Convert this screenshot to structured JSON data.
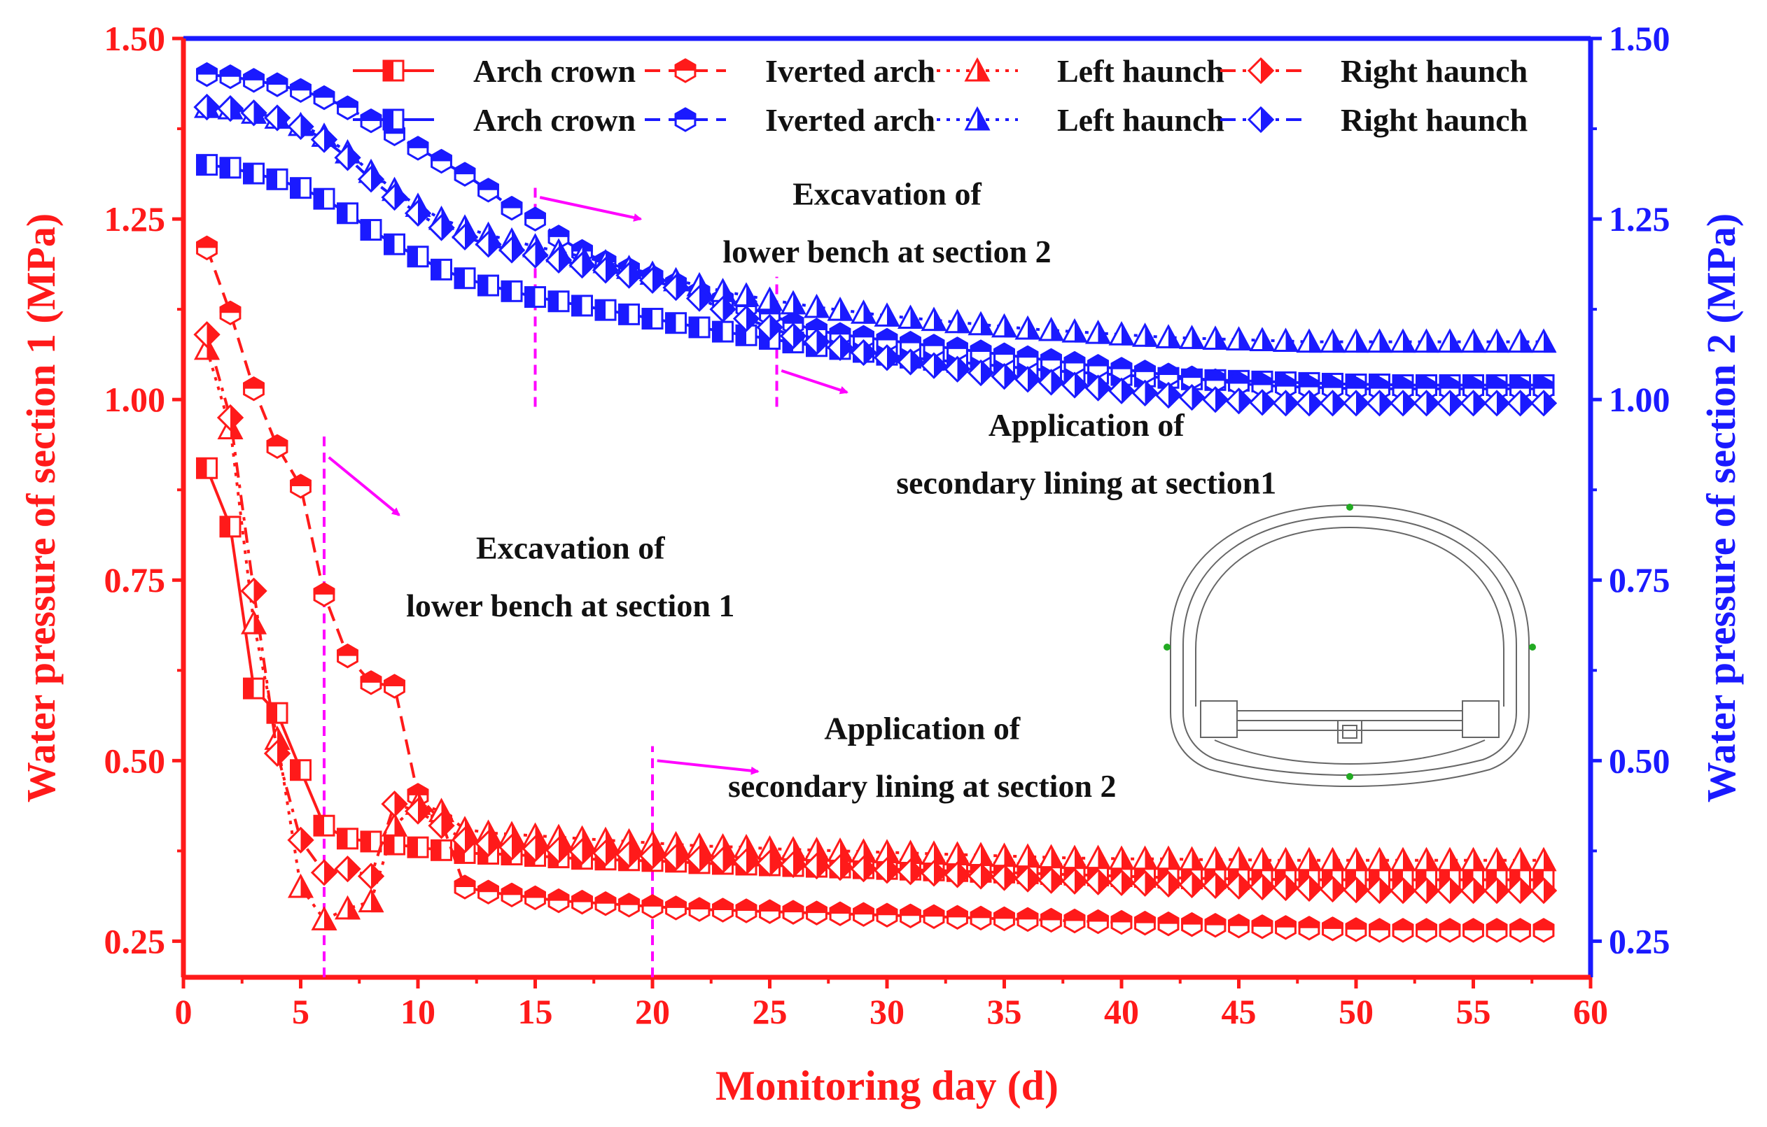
{
  "chart_data": {
    "type": "line",
    "xlabel": "Monitoring day (d)",
    "ylabel_left": "Water pressure of section 1 (MPa)",
    "ylabel_right": "Water pressure of section 2 (MPa)",
    "xlim": [
      0,
      60
    ],
    "ylim_left": [
      0.2,
      1.5
    ],
    "ylim_right": [
      0.2,
      1.5
    ],
    "xticks": [
      "0",
      "5",
      "10",
      "15",
      "20",
      "25",
      "30",
      "35",
      "40",
      "45",
      "50",
      "55",
      "60"
    ],
    "yticks_left": [
      "0.25",
      "0.50",
      "0.75",
      "1.00",
      "1.25",
      "1.50"
    ],
    "yticks_right": [
      "0.25",
      "0.50",
      "0.75",
      "1.00",
      "1.25",
      "1.50"
    ],
    "colors": {
      "section1": "#ff1a1a",
      "section2": "#1a1aff",
      "annotation": "#ff00ff",
      "text": "#111111"
    },
    "x": [
      1,
      2,
      3,
      4,
      5,
      6,
      7,
      8,
      9,
      10,
      11,
      12,
      13,
      14,
      15,
      16,
      17,
      18,
      19,
      20,
      21,
      22,
      23,
      24,
      25,
      26,
      27,
      28,
      29,
      30,
      31,
      32,
      33,
      34,
      35,
      36,
      37,
      38,
      39,
      40,
      41,
      42,
      43,
      44,
      45,
      46,
      47,
      48,
      49,
      50,
      51,
      52,
      53,
      54,
      55,
      56,
      57,
      58
    ],
    "series": [
      {
        "name": "Arch crown",
        "section": 1,
        "axis": "left",
        "marker": "square",
        "dash": "solid",
        "values": [
          0.905,
          0.824,
          0.6,
          0.566,
          0.487,
          0.41,
          0.392,
          0.388,
          0.384,
          0.38,
          0.376,
          0.372,
          0.371,
          0.37,
          0.368,
          0.366,
          0.364,
          0.363,
          0.362,
          0.361,
          0.36,
          0.358,
          0.357,
          0.356,
          0.355,
          0.354,
          0.353,
          0.352,
          0.351,
          0.35,
          0.349,
          0.348,
          0.347,
          0.346,
          0.345,
          0.344,
          0.343,
          0.342,
          0.341,
          0.34,
          0.339,
          0.338,
          0.337,
          0.337,
          0.336,
          0.336,
          0.335,
          0.335,
          0.335,
          0.335,
          0.335,
          0.335,
          0.335,
          0.335,
          0.335,
          0.335,
          0.335,
          0.335
        ]
      },
      {
        "name": "Iverted arch",
        "section": 1,
        "axis": "left",
        "marker": "hexagon",
        "dash": "dash",
        "values": [
          1.21,
          1.12,
          1.015,
          0.935,
          0.88,
          0.73,
          0.645,
          0.608,
          0.603,
          0.452,
          0.416,
          0.325,
          0.318,
          0.314,
          0.31,
          0.306,
          0.304,
          0.302,
          0.3,
          0.298,
          0.296,
          0.294,
          0.293,
          0.292,
          0.291,
          0.29,
          0.289,
          0.288,
          0.287,
          0.286,
          0.285,
          0.284,
          0.283,
          0.282,
          0.281,
          0.28,
          0.279,
          0.278,
          0.277,
          0.276,
          0.275,
          0.274,
          0.273,
          0.272,
          0.271,
          0.27,
          0.269,
          0.268,
          0.267,
          0.266,
          0.265,
          0.265,
          0.265,
          0.265,
          0.265,
          0.265,
          0.265,
          0.265
        ]
      },
      {
        "name": "Left haunch",
        "section": 1,
        "axis": "left",
        "marker": "triangle",
        "dash": "dot",
        "values": [
          1.07,
          0.96,
          0.69,
          0.53,
          0.325,
          0.28,
          0.295,
          0.305,
          0.41,
          0.44,
          0.43,
          0.405,
          0.4,
          0.398,
          0.396,
          0.394,
          0.392,
          0.39,
          0.388,
          0.386,
          0.384,
          0.382,
          0.381,
          0.38,
          0.378,
          0.377,
          0.376,
          0.375,
          0.374,
          0.373,
          0.372,
          0.371,
          0.37,
          0.369,
          0.368,
          0.367,
          0.366,
          0.365,
          0.365,
          0.364,
          0.364,
          0.364,
          0.363,
          0.363,
          0.363,
          0.362,
          0.362,
          0.362,
          0.362,
          0.362,
          0.362,
          0.362,
          0.362,
          0.362,
          0.362,
          0.362,
          0.362,
          0.362
        ]
      },
      {
        "name": "Right haunch",
        "section": 1,
        "axis": "left",
        "marker": "diamond",
        "dash": "dashdot",
        "values": [
          1.09,
          0.975,
          0.735,
          0.51,
          0.39,
          0.345,
          0.35,
          0.34,
          0.44,
          0.43,
          0.41,
          0.39,
          0.385,
          0.38,
          0.378,
          0.376,
          0.374,
          0.372,
          0.37,
          0.368,
          0.366,
          0.364,
          0.362,
          0.36,
          0.358,
          0.356,
          0.354,
          0.352,
          0.35,
          0.348,
          0.346,
          0.344,
          0.342,
          0.34,
          0.338,
          0.336,
          0.334,
          0.333,
          0.332,
          0.331,
          0.33,
          0.329,
          0.328,
          0.327,
          0.326,
          0.325,
          0.324,
          0.323,
          0.322,
          0.321,
          0.32,
          0.32,
          0.32,
          0.32,
          0.32,
          0.32,
          0.32,
          0.32
        ]
      },
      {
        "name": "Arch crown",
        "section": 2,
        "axis": "right",
        "marker": "square",
        "dash": "solid",
        "values": [
          1.325,
          1.321,
          1.313,
          1.305,
          1.293,
          1.278,
          1.258,
          1.235,
          1.215,
          1.198,
          1.18,
          1.168,
          1.158,
          1.15,
          1.142,
          1.136,
          1.13,
          1.124,
          1.118,
          1.112,
          1.106,
          1.1,
          1.094,
          1.089,
          1.084,
          1.079,
          1.074,
          1.07,
          1.066,
          1.062,
          1.058,
          1.055,
          1.052,
          1.049,
          1.046,
          1.043,
          1.04,
          1.038,
          1.036,
          1.034,
          1.032,
          1.03,
          1.028,
          1.027,
          1.026,
          1.025,
          1.024,
          1.023,
          1.022,
          1.021,
          1.021,
          1.02,
          1.02,
          1.02,
          1.02,
          1.02,
          1.02,
          1.02
        ]
      },
      {
        "name": "Iverted arch",
        "section": 2,
        "axis": "right",
        "marker": "hexagon",
        "dash": "dash",
        "values": [
          1.45,
          1.447,
          1.442,
          1.436,
          1.428,
          1.418,
          1.404,
          1.386,
          1.368,
          1.348,
          1.33,
          1.312,
          1.29,
          1.265,
          1.25,
          1.225,
          1.205,
          1.19,
          1.18,
          1.17,
          1.16,
          1.148,
          1.138,
          1.128,
          1.118,
          1.105,
          1.096,
          1.09,
          1.086,
          1.082,
          1.078,
          1.074,
          1.07,
          1.066,
          1.062,
          1.058,
          1.054,
          1.05,
          1.046,
          1.042,
          1.038,
          1.034,
          1.03,
          1.026,
          1.022,
          1.02,
          1.018,
          1.017,
          1.016,
          1.015,
          1.015,
          1.015,
          1.015,
          1.015,
          1.015,
          1.015,
          1.015,
          1.015
        ]
      },
      {
        "name": "Left haunch",
        "section": 2,
        "axis": "right",
        "marker": "triangle",
        "dash": "dot",
        "values": [
          1.405,
          1.403,
          1.397,
          1.39,
          1.38,
          1.365,
          1.342,
          1.315,
          1.29,
          1.268,
          1.25,
          1.238,
          1.228,
          1.22,
          1.212,
          1.205,
          1.198,
          1.19,
          1.182,
          1.174,
          1.165,
          1.158,
          1.15,
          1.144,
          1.138,
          1.133,
          1.128,
          1.124,
          1.12,
          1.116,
          1.113,
          1.11,
          1.107,
          1.104,
          1.101,
          1.098,
          1.096,
          1.094,
          1.092,
          1.09,
          1.088,
          1.086,
          1.085,
          1.084,
          1.083,
          1.082,
          1.081,
          1.08,
          1.08,
          1.08,
          1.08,
          1.08,
          1.08,
          1.08,
          1.08,
          1.08,
          1.08,
          1.08
        ]
      },
      {
        "name": "Right haunch",
        "section": 2,
        "axis": "right",
        "marker": "diamond",
        "dash": "dashdot",
        "values": [
          1.405,
          1.403,
          1.397,
          1.39,
          1.378,
          1.36,
          1.335,
          1.305,
          1.28,
          1.258,
          1.238,
          1.225,
          1.215,
          1.207,
          1.2,
          1.193,
          1.186,
          1.179,
          1.172,
          1.165,
          1.155,
          1.14,
          1.125,
          1.112,
          1.1,
          1.088,
          1.08,
          1.072,
          1.065,
          1.058,
          1.052,
          1.047,
          1.042,
          1.037,
          1.032,
          1.028,
          1.024,
          1.02,
          1.016,
          1.012,
          1.009,
          1.006,
          1.003,
          1.0,
          0.998,
          0.996,
          0.995,
          0.995,
          0.995,
          0.995,
          0.995,
          0.995,
          0.995,
          0.995,
          0.995,
          0.995,
          0.995,
          0.995
        ]
      }
    ],
    "legend": {
      "position": "top-right",
      "section1_labels": [
        "Arch crown",
        "Iverted arch",
        "Left haunch",
        "Right haunch"
      ],
      "section2_labels": [
        "Arch crown",
        "Iverted arch",
        "Left haunch",
        "Right haunch"
      ]
    },
    "annotations": [
      {
        "line1": "Excavation of",
        "line2": "lower bench at section 1",
        "marker_x": 6,
        "line_from": 0.2,
        "line_to": 0.95,
        "arrow_axis": "left",
        "arrow_from": [
          6.2,
          0.92
        ],
        "arrow_to": [
          9.2,
          0.84
        ],
        "text_x": 16.5,
        "text_y": [
          0.78,
          0.7
        ]
      },
      {
        "line1": "Excavation of",
        "line2": "lower bench at section 2",
        "marker_x": 15,
        "line_from": 0.99,
        "line_to": 1.3,
        "arrow_axis": "right",
        "arrow_from": [
          15.2,
          1.28
        ],
        "arrow_to": [
          19.5,
          1.25
        ],
        "text_x": 30,
        "text_y": [
          1.27,
          1.19
        ]
      },
      {
        "line1": "Application of",
        "line2": "secondary lining at section1",
        "marker_x": 25.3,
        "line_from": 0.99,
        "line_to": 1.17,
        "arrow_axis": "right",
        "arrow_from": [
          25.5,
          1.04
        ],
        "arrow_to": [
          28.3,
          1.01
        ],
        "text_x": 38.5,
        "text_y": [
          0.95,
          0.87
        ]
      },
      {
        "line1": "Application of",
        "line2": "secondary lining at section 2",
        "marker_x": 20,
        "line_from": 0.2,
        "line_to": 0.52,
        "arrow_axis": "left",
        "arrow_from": [
          20.2,
          0.5
        ],
        "arrow_to": [
          24.5,
          0.485
        ],
        "text_x": 31.5,
        "text_y": [
          0.53,
          0.45
        ]
      }
    ]
  }
}
